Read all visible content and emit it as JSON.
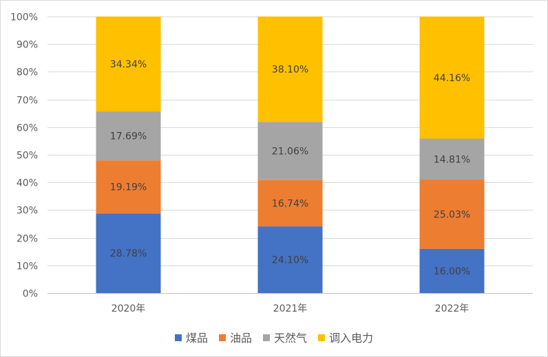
{
  "chart_data": {
    "type": "bar",
    "stacked": true,
    "percent": true,
    "title": "",
    "xlabel": "",
    "ylabel": "",
    "categories": [
      "2020年",
      "2021年",
      "2022年"
    ],
    "ylim": [
      0,
      100
    ],
    "yticks": [
      "0%",
      "10%",
      "20%",
      "30%",
      "40%",
      "50%",
      "60%",
      "70%",
      "80%",
      "90%",
      "100%"
    ],
    "grid": true,
    "legend_position": "bottom",
    "series": [
      {
        "name": "煤品",
        "color": "#4472C4",
        "values": [
          28.78,
          24.1,
          16.0
        ],
        "labels": [
          "28.78%",
          "24.10%",
          "16.00%"
        ]
      },
      {
        "name": "油品",
        "color": "#ED7D31",
        "values": [
          19.19,
          16.74,
          25.03
        ],
        "labels": [
          "19.19%",
          "16.74%",
          "25.03%"
        ]
      },
      {
        "name": "天然气",
        "color": "#A5A5A5",
        "values": [
          17.69,
          21.06,
          14.81
        ],
        "labels": [
          "17.69%",
          "21.06%",
          "14.81%"
        ]
      },
      {
        "name": "调入电力",
        "color": "#FFC000",
        "values": [
          34.34,
          38.1,
          44.16
        ],
        "labels": [
          "34.34%",
          "38.10%",
          "44.16%"
        ]
      }
    ]
  }
}
